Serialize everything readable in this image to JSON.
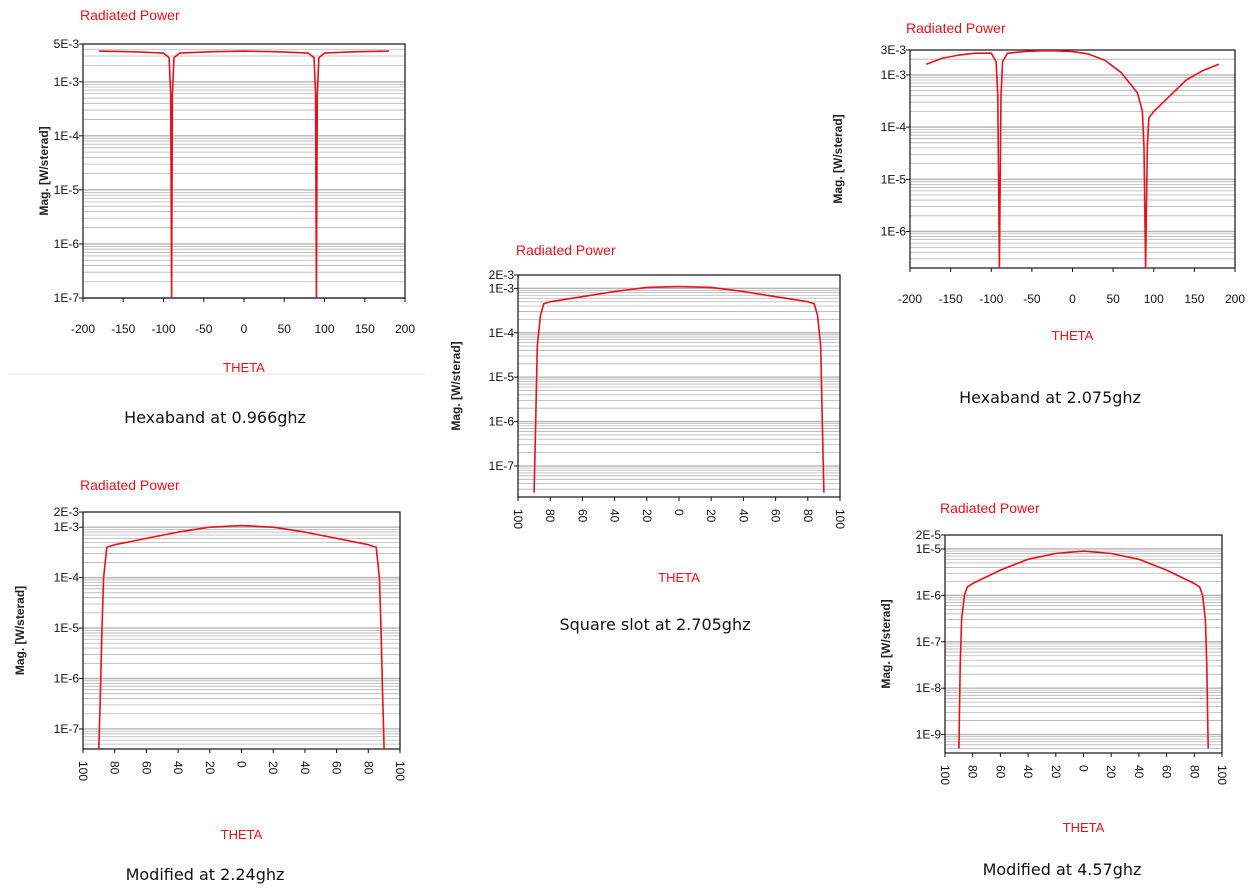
{
  "colors": {
    "curve": "#e8101a",
    "title": "#e8101a",
    "grid": "#b4b4b4",
    "axis": "#111111"
  },
  "chart_data": [
    {
      "type": "line",
      "title": "Radiated Power",
      "xlabel": "THETA",
      "ylabel": "Mag. [W/sterad]",
      "caption": "Hexaband at 0.966ghz",
      "yscale": "log",
      "xlim": [
        -200,
        200
      ],
      "ylim": [
        1e-07,
        0.005
      ],
      "xticks": [
        "-200",
        "-150",
        "-100",
        "-50",
        "0",
        "50",
        "100",
        "150",
        "200"
      ],
      "yticks": [
        "5E-3",
        "1E-3",
        "1E-4",
        "1E-5",
        "1E-6",
        "1E-7"
      ],
      "grid": true,
      "series": [
        {
          "x": [
            -180,
            -140,
            -100,
            -93,
            -91,
            -90,
            -89,
            -87,
            -80,
            -40,
            0,
            40,
            80,
            87,
            89,
            90,
            91,
            93,
            100,
            140,
            180
          ],
          "y": [
            0.0037,
            0.0036,
            0.0034,
            0.0028,
            0.0006,
            1e-07,
            0.0006,
            0.0028,
            0.0034,
            0.0036,
            0.0037,
            0.0036,
            0.0034,
            0.0028,
            0.0006,
            1e-07,
            0.0006,
            0.0028,
            0.0034,
            0.0036,
            0.0037
          ]
        }
      ]
    },
    {
      "type": "line",
      "title": "Radiated Power",
      "xlabel": "THETA",
      "ylabel": "Mag. [W/sterad]",
      "caption": "Hexaband at 2.075ghz",
      "yscale": "log",
      "xlim": [
        -200,
        200
      ],
      "ylim": [
        2e-07,
        0.003
      ],
      "xticks": [
        "-200",
        "-150",
        "-100",
        "-50",
        "0",
        "50",
        "100",
        "150",
        "200"
      ],
      "yticks": [
        "3E-3",
        "1E-3",
        "1E-4",
        "1E-5",
        "1E-6"
      ],
      "grid": true,
      "series": [
        {
          "x": [
            -180,
            -160,
            -140,
            -120,
            -100,
            -94,
            -92,
            -91,
            -90,
            -89,
            -88,
            -86,
            -80,
            -60,
            -40,
            -20,
            0,
            20,
            40,
            60,
            80,
            86,
            88,
            90,
            92,
            94,
            100,
            120,
            140,
            160,
            180
          ],
          "y": [
            0.0016,
            0.0021,
            0.0024,
            0.0026,
            0.0026,
            0.0018,
            0.0004,
            1e-05,
            2e-07,
            1e-05,
            0.0004,
            0.0018,
            0.0026,
            0.0028,
            0.0029,
            0.0029,
            0.0028,
            0.0025,
            0.0019,
            0.0011,
            0.00045,
            0.0002,
            4e-05,
            2e-07,
            4e-05,
            0.00015,
            0.0002,
            0.0004,
            0.0008,
            0.0012,
            0.0016
          ]
        }
      ]
    },
    {
      "type": "line",
      "title": "Radiated Power",
      "xlabel": "THETA",
      "ylabel": "Mag. [W/sterad]",
      "caption": "Square slot at 2.705ghz",
      "yscale": "log",
      "xlim": [
        -100,
        100
      ],
      "ylim": [
        2e-08,
        0.002
      ],
      "xticks": [
        "100",
        "80",
        "60",
        "40",
        "20",
        "0",
        "20",
        "40",
        "60",
        "80",
        "100"
      ],
      "yticks": [
        "2E-3",
        "1E-3",
        "1E-4",
        "1E-5",
        "1E-6",
        "1E-7"
      ],
      "grid": true,
      "series": [
        {
          "x": [
            -90,
            -89,
            -88,
            -86,
            -84,
            -80,
            -60,
            -40,
            -20,
            0,
            20,
            40,
            60,
            80,
            84,
            86,
            88,
            89,
            90
          ],
          "y": [
            2.5e-08,
            1e-06,
            5e-05,
            0.00025,
            0.00045,
            0.0005,
            0.00065,
            0.00085,
            0.00105,
            0.0011,
            0.00105,
            0.00085,
            0.00065,
            0.0005,
            0.00045,
            0.00025,
            5e-05,
            1e-06,
            2.5e-08
          ]
        }
      ]
    },
    {
      "type": "line",
      "title": "Radiated Power",
      "xlabel": "THETA",
      "ylabel": "Mag. [W/sterad]",
      "caption": "Modified at 2.24ghz",
      "yscale": "log",
      "xlim": [
        -100,
        100
      ],
      "ylim": [
        4e-08,
        0.002
      ],
      "xticks": [
        "100",
        "80",
        "60",
        "40",
        "20",
        "0",
        "20",
        "40",
        "60",
        "80",
        "100"
      ],
      "yticks": [
        "2E-3",
        "1E-3",
        "1E-4",
        "1E-5",
        "1E-6",
        "1E-7"
      ],
      "grid": true,
      "series": [
        {
          "x": [
            -90,
            -89,
            -88,
            -87,
            -85,
            -80,
            -60,
            -40,
            -20,
            0,
            20,
            40,
            60,
            80,
            85,
            87,
            88,
            89,
            90
          ],
          "y": [
            4e-08,
            5e-07,
            1e-05,
            0.0001,
            0.0004,
            0.00045,
            0.0006,
            0.0008,
            0.001,
            0.00108,
            0.001,
            0.0008,
            0.0006,
            0.00045,
            0.0004,
            0.0001,
            1e-05,
            5e-07,
            4e-08
          ]
        }
      ]
    },
    {
      "type": "line",
      "title": "Radiated Power",
      "xlabel": "THETA",
      "ylabel": "Mag. [W/sterad]",
      "caption": "Modified at 4.57ghz",
      "yscale": "log",
      "xlim": [
        -100,
        100
      ],
      "ylim": [
        4e-10,
        2e-05
      ],
      "xticks": [
        "100",
        "80",
        "60",
        "40",
        "20",
        "0",
        "20",
        "40",
        "60",
        "80",
        "100"
      ],
      "yticks": [
        "2E-5",
        "1E-5",
        "1E-6",
        "1E-7",
        "1E-8",
        "1E-9"
      ],
      "grid": true,
      "series": [
        {
          "x": [
            -90,
            -89,
            -88,
            -86,
            -84,
            -80,
            -60,
            -40,
            -20,
            0,
            20,
            40,
            60,
            80,
            84,
            86,
            88,
            89,
            90
          ],
          "y": [
            5e-10,
            3e-08,
            3e-07,
            1e-06,
            1.5e-06,
            1.8e-06,
            3.5e-06,
            6e-06,
            8e-06,
            9e-06,
            8e-06,
            6e-06,
            3.5e-06,
            1.8e-06,
            1.5e-06,
            1e-06,
            3e-07,
            3e-08,
            5e-10
          ]
        }
      ]
    }
  ]
}
